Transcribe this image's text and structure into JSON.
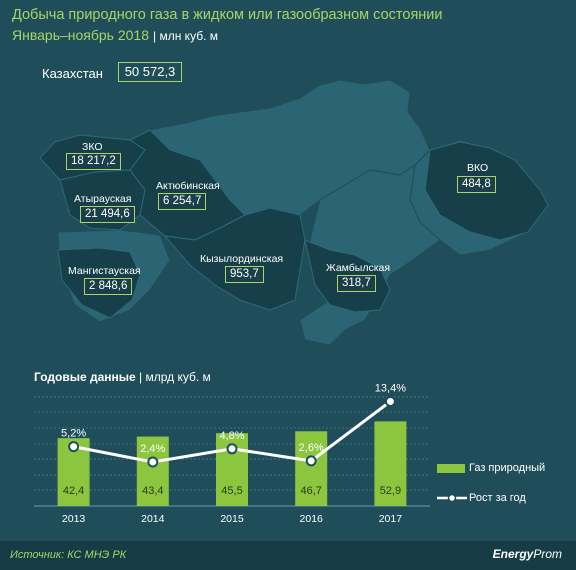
{
  "header": {
    "title": "Добыча природного газа в жидком или газообразном состоянии",
    "subtitle": "Январь–ноябрь 2018",
    "unit": "| млн куб. м"
  },
  "kazakhstan": {
    "label": "Казахстан",
    "value": "50 572,3"
  },
  "regions": {
    "zko": {
      "name": "ЗКО",
      "value": "18 217,2"
    },
    "atyrau": {
      "name": "Атырауская",
      "value": "21 494,6"
    },
    "aktobe": {
      "name": "Актюбинская",
      "value": "6 254,7"
    },
    "mangystau": {
      "name": "Мангистауская",
      "value": "2 848,6"
    },
    "kyzylorda": {
      "name": "Кызылординская",
      "value": "953,7"
    },
    "zhambyl": {
      "name": "Жамбылская",
      "value": "318,7"
    },
    "vko": {
      "name": "ВКО",
      "value": "484,8"
    }
  },
  "annual": {
    "title": "Годовые данные",
    "unit": "| млрд куб. м"
  },
  "chart_data": {
    "type": "bar",
    "categories": [
      "2013",
      "2014",
      "2015",
      "2016",
      "2017"
    ],
    "series": [
      {
        "name": "Газ природный",
        "type": "bar",
        "values": [
          42.4,
          43.4,
          45.5,
          46.7,
          52.9
        ],
        "labels": [
          "42,4",
          "43,4",
          "45,5",
          "46,7",
          "52,9"
        ],
        "color": "#8cc63f"
      },
      {
        "name": "Рост за год",
        "type": "line",
        "values": [
          5.2,
          2.4,
          4.8,
          2.6,
          13.4
        ],
        "labels": [
          "5,2%",
          "2,4%",
          "4,8%",
          "2,6%",
          "13,4%"
        ],
        "color": "#ffffff"
      }
    ],
    "grid": true,
    "legend": "right"
  },
  "footer": {
    "source": "Источник: КС МНЭ РК",
    "logo_main": "Energy",
    "logo_rest": "Prom"
  },
  "colors": {
    "background": "#1f4e5a",
    "accent": "#a7d566",
    "map_light": "#2b6472",
    "map_dark": "#163f4a"
  }
}
